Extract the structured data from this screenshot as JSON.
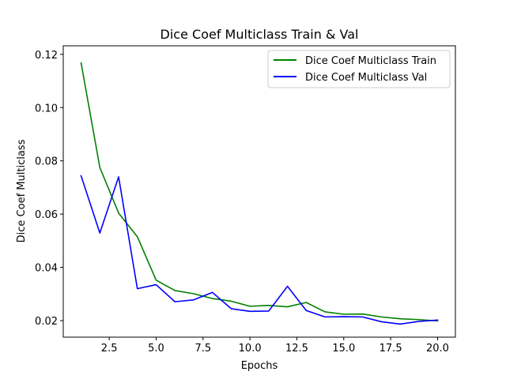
{
  "chart_data": {
    "type": "line",
    "title": "Dice Coef Multiclass Train & Val",
    "xlabel": "Epochs",
    "ylabel": "Dice Coef Multiclass",
    "xlim": [
      0.05,
      20.95
    ],
    "ylim": [
      0.0138,
      0.1232
    ],
    "xticks": [
      2.5,
      5.0,
      7.5,
      10.0,
      12.5,
      15.0,
      17.5,
      20.0
    ],
    "xtick_labels": [
      "2.5",
      "5.0",
      "7.5",
      "10.0",
      "12.5",
      "15.0",
      "17.5",
      "20.0"
    ],
    "yticks": [
      0.02,
      0.04,
      0.06,
      0.08,
      0.1,
      0.12
    ],
    "ytick_labels": [
      "0.02",
      "0.04",
      "0.06",
      "0.08",
      "0.10",
      "0.12"
    ],
    "grid": false,
    "legend_position": "top-right",
    "x": [
      1,
      2,
      3,
      4,
      5,
      6,
      7,
      8,
      9,
      10,
      11,
      12,
      13,
      14,
      15,
      16,
      17,
      18,
      19,
      20
    ],
    "series": [
      {
        "name": "Dice Coef Multiclass Train",
        "color": "#008000",
        "values": [
          0.1168,
          0.0775,
          0.0604,
          0.0515,
          0.0352,
          0.0313,
          0.0301,
          0.0283,
          0.0273,
          0.0254,
          0.0257,
          0.0252,
          0.0268,
          0.0233,
          0.0224,
          0.0225,
          0.0214,
          0.0207,
          0.0204,
          0.0199
        ]
      },
      {
        "name": "Dice Coef Multiclass Val",
        "color": "#0000ff",
        "values": [
          0.0744,
          0.0529,
          0.074,
          0.032,
          0.0335,
          0.0271,
          0.0278,
          0.0306,
          0.0245,
          0.0235,
          0.0236,
          0.0329,
          0.0238,
          0.0214,
          0.0215,
          0.0214,
          0.0196,
          0.0187,
          0.0197,
          0.0202
        ]
      }
    ]
  }
}
